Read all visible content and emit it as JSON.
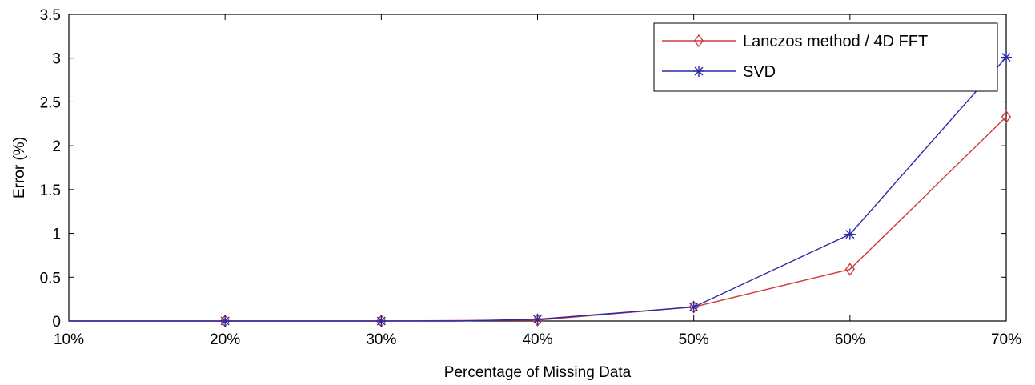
{
  "chart_data": {
    "type": "line",
    "title": "",
    "xlabel": "Percentage of Missing Data",
    "ylabel": "Error (%)",
    "x": [
      10,
      20,
      30,
      40,
      50,
      60,
      70
    ],
    "x_tick_labels": [
      "10%",
      "20%",
      "30%",
      "40%",
      "50%",
      "60%",
      "70%"
    ],
    "xlim": [
      10,
      70
    ],
    "ylim": [
      0,
      3.5
    ],
    "y_ticks": [
      0,
      0.5,
      1,
      1.5,
      2,
      2.5,
      3,
      3.5
    ],
    "y_tick_labels": [
      "0",
      "0.5",
      "1",
      "1.5",
      "2",
      "2.5",
      "3",
      "3.5"
    ],
    "grid": false,
    "legend_position": "top-right",
    "series": [
      {
        "name": "Lanczos method / 4D FFT",
        "color": "#d23c3c",
        "marker": "diamond",
        "points": [
          [
            10,
            0
          ],
          [
            20,
            0
          ],
          [
            30,
            0
          ],
          [
            40,
            0.01
          ],
          [
            50,
            0.16
          ],
          [
            60,
            0.59
          ],
          [
            70,
            2.33
          ]
        ],
        "marker_x": [
          20,
          30,
          40,
          50,
          60,
          70
        ]
      },
      {
        "name": "SVD",
        "color": "#2a2aa8",
        "marker": "asterisk",
        "points": [
          [
            10,
            0
          ],
          [
            20,
            0
          ],
          [
            30,
            0
          ],
          [
            35,
            0
          ],
          [
            40,
            0.02
          ],
          [
            50,
            0.16
          ],
          [
            60,
            0.99
          ],
          [
            70,
            3.01
          ]
        ],
        "marker_x": [
          20,
          30,
          40,
          50,
          60,
          70
        ]
      }
    ]
  }
}
